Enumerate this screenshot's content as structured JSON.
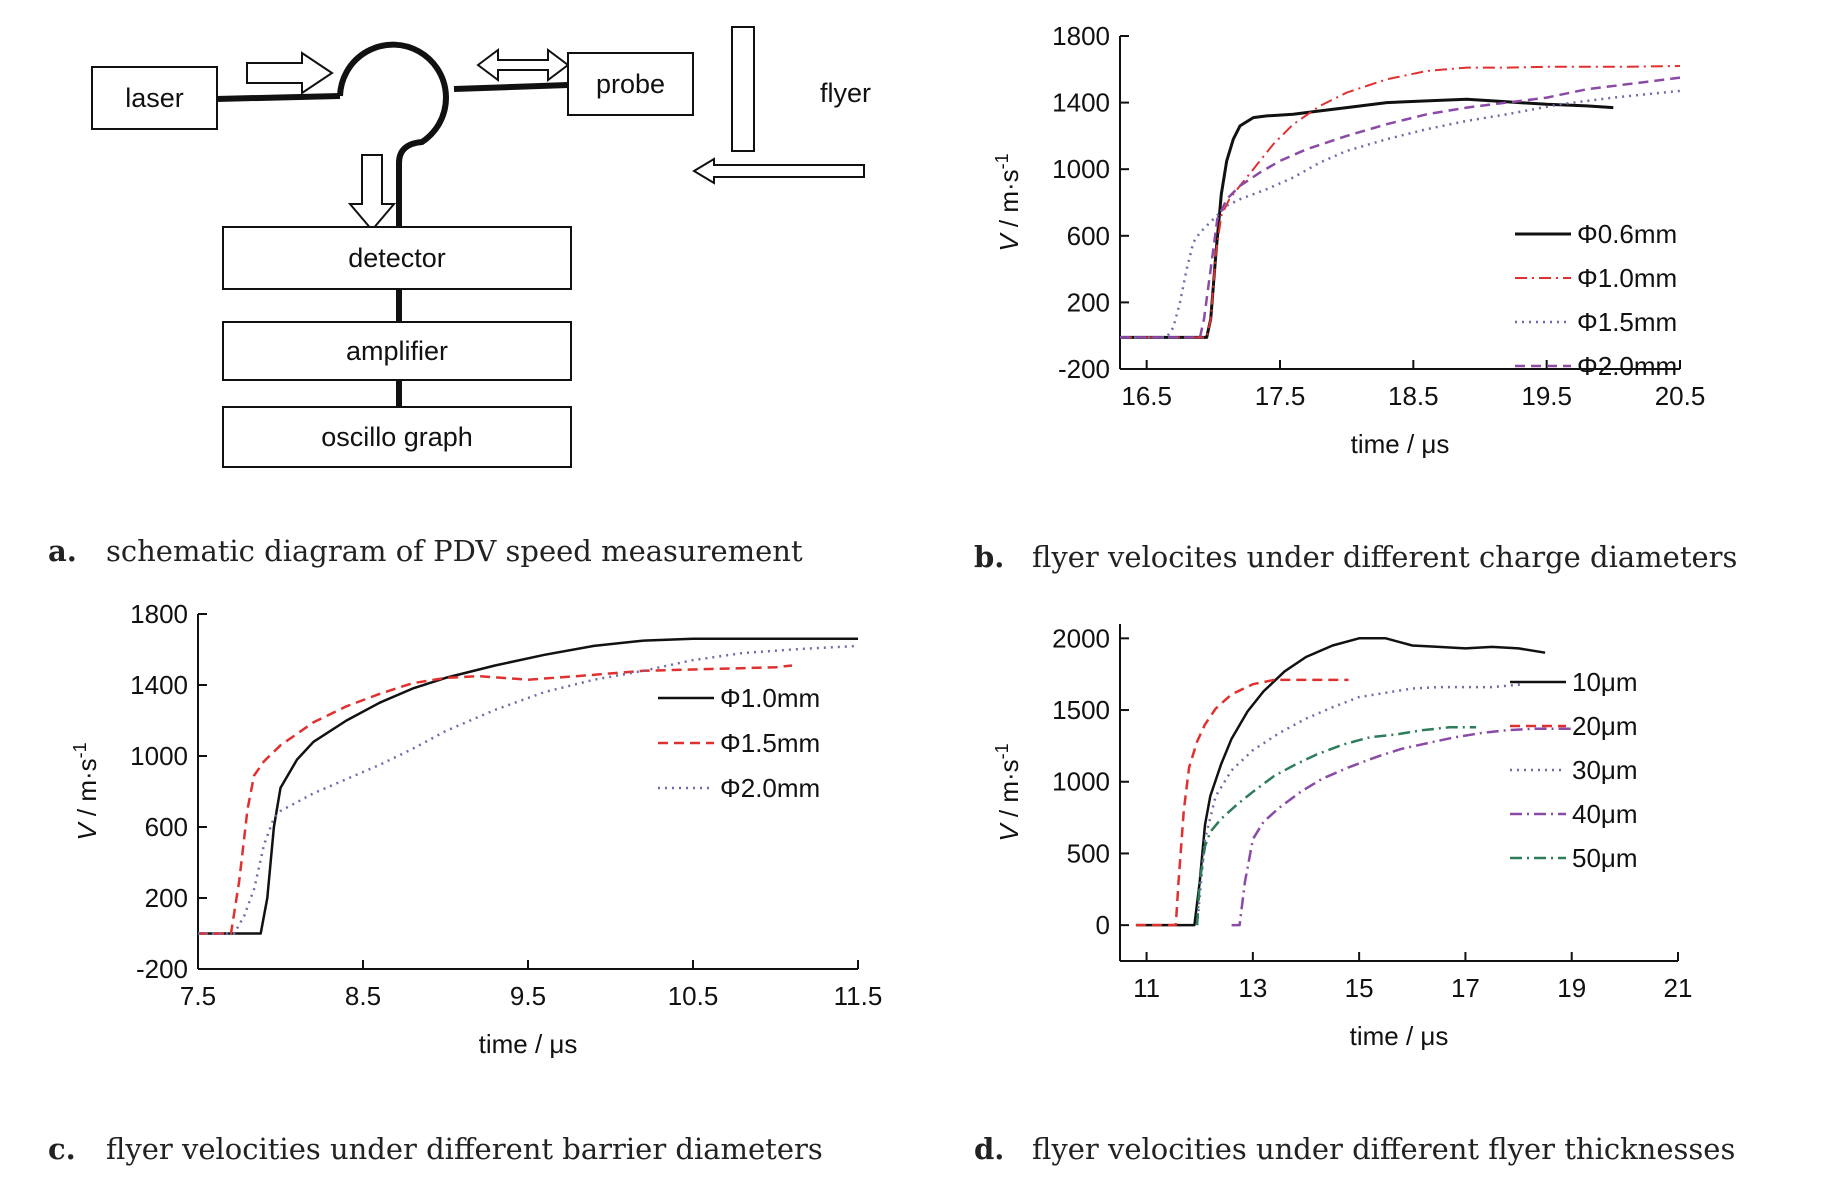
{
  "captions": {
    "a": {
      "letter": "a.",
      "text": "schematic diagram of PDV speed measurement"
    },
    "b": {
      "letter": "b.",
      "text": "flyer velocites under different charge diameters"
    },
    "c": {
      "letter": "c.",
      "text": "flyer velocities under different barrier diameters"
    },
    "d": {
      "letter": "d.",
      "text": "flyer velocities under different flyer thicknesses"
    }
  },
  "diagram": {
    "laser": "laser",
    "probe": "probe",
    "flyer": "flyer",
    "detector": "detector",
    "amplifier": "amplifier",
    "oscillograph": "oscillo graph"
  },
  "chart_data": [
    {
      "id": "b",
      "type": "line",
      "xlabel": "time / μs",
      "ylabel": "V / m·s-1",
      "xlim": [
        16.3,
        20.5
      ],
      "ylim": [
        -200,
        1800
      ],
      "xticks": [
        16.5,
        17.5,
        18.5,
        19.5,
        20.5
      ],
      "yticks": [
        -200,
        200,
        600,
        1000,
        1400,
        1800
      ],
      "legend": "right-middle",
      "series": [
        {
          "name": "Φ0.6mm",
          "color": "#111111",
          "style": "solid",
          "width": 3,
          "x": [
            16.3,
            16.95,
            16.98,
            17.02,
            17.06,
            17.1,
            17.15,
            17.2,
            17.3,
            17.4,
            17.6,
            17.8,
            18.0,
            18.3,
            18.6,
            18.9,
            19.2,
            19.5,
            19.8,
            20.0
          ],
          "y": [
            -10,
            -10,
            100,
            500,
            850,
            1050,
            1180,
            1260,
            1310,
            1320,
            1330,
            1350,
            1370,
            1400,
            1410,
            1420,
            1405,
            1390,
            1380,
            1370
          ]
        },
        {
          "name": "Φ1.0mm",
          "color": "#e03030",
          "style": "dashdot",
          "width": 2,
          "x": [
            16.3,
            16.95,
            16.98,
            17.02,
            17.06,
            17.12,
            17.2,
            17.3,
            17.45,
            17.6,
            17.8,
            18.0,
            18.3,
            18.6,
            18.9,
            19.2,
            19.5,
            19.8,
            20.1,
            20.5
          ],
          "y": [
            -10,
            -10,
            100,
            500,
            720,
            820,
            900,
            1000,
            1150,
            1270,
            1380,
            1460,
            1540,
            1590,
            1610,
            1610,
            1615,
            1615,
            1615,
            1620
          ]
        },
        {
          "name": "Φ1.5mm",
          "color": "#6d6dab",
          "style": "dotted",
          "width": 2.5,
          "x": [
            16.3,
            16.65,
            16.7,
            16.75,
            16.8,
            16.85,
            16.9,
            17.0,
            17.1,
            17.2,
            17.4,
            17.6,
            17.8,
            18.0,
            18.3,
            18.6,
            18.9,
            19.2,
            19.6,
            20.0,
            20.5
          ],
          "y": [
            -10,
            -10,
            50,
            200,
            400,
            560,
            620,
            700,
            780,
            820,
            880,
            950,
            1040,
            1110,
            1180,
            1240,
            1290,
            1330,
            1390,
            1430,
            1470
          ]
        },
        {
          "name": "Φ2.0mm",
          "color": "#8a4aa6",
          "style": "dashed",
          "width": 2.5,
          "x": [
            16.3,
            16.9,
            16.93,
            16.98,
            17.03,
            17.1,
            17.2,
            17.35,
            17.5,
            17.7,
            18.0,
            18.3,
            18.6,
            18.9,
            19.2,
            19.5,
            19.8,
            20.1,
            20.5
          ],
          "y": [
            -10,
            -10,
            100,
            400,
            700,
            820,
            900,
            980,
            1050,
            1120,
            1200,
            1270,
            1330,
            1370,
            1400,
            1430,
            1480,
            1510,
            1550
          ]
        }
      ]
    },
    {
      "id": "c",
      "type": "line",
      "xlabel": "time / μs",
      "ylabel": "V / m·s-1",
      "xlim": [
        7.5,
        11.5
      ],
      "ylim": [
        -200,
        1800
      ],
      "xticks": [
        7.5,
        8.5,
        9.5,
        10.5,
        11.5
      ],
      "yticks": [
        -200,
        200,
        600,
        1000,
        1400,
        1800
      ],
      "legend": "right-middle",
      "series": [
        {
          "name": "Φ1.0mm",
          "color": "#111111",
          "style": "solid",
          "width": 2.5,
          "x": [
            7.5,
            7.88,
            7.92,
            7.96,
            8.0,
            8.1,
            8.2,
            8.4,
            8.6,
            8.8,
            9.0,
            9.3,
            9.6,
            9.9,
            10.2,
            10.5,
            10.8,
            11.1,
            11.5
          ],
          "y": [
            0,
            0,
            200,
            600,
            820,
            980,
            1080,
            1200,
            1300,
            1380,
            1440,
            1510,
            1570,
            1620,
            1650,
            1660,
            1660,
            1660,
            1660
          ]
        },
        {
          "name": "Φ1.5mm",
          "color": "#e03030",
          "style": "dashed",
          "width": 2.5,
          "x": [
            7.5,
            7.7,
            7.75,
            7.8,
            7.84,
            7.9,
            8.0,
            8.2,
            8.4,
            8.6,
            8.8,
            9.0,
            9.2,
            9.5,
            9.8,
            10.2,
            10.6,
            11.0,
            11.1
          ],
          "y": [
            0,
            0,
            300,
            700,
            890,
            970,
            1060,
            1190,
            1280,
            1350,
            1410,
            1440,
            1450,
            1430,
            1450,
            1480,
            1490,
            1500,
            1510
          ]
        },
        {
          "name": "Φ2.0mm",
          "color": "#6d6dab",
          "style": "dotted",
          "width": 2.5,
          "x": [
            7.5,
            7.72,
            7.78,
            7.84,
            7.9,
            7.96,
            8.0,
            8.2,
            8.4,
            8.6,
            8.8,
            9.0,
            9.3,
            9.6,
            9.9,
            10.2,
            10.5,
            10.8,
            11.1,
            11.5
          ],
          "y": [
            0,
            0,
            100,
            250,
            500,
            650,
            690,
            790,
            870,
            950,
            1040,
            1140,
            1260,
            1360,
            1430,
            1480,
            1540,
            1580,
            1600,
            1620
          ]
        }
      ]
    },
    {
      "id": "d",
      "type": "line",
      "xlabel": "time / μs",
      "ylabel": "V / m·s-1",
      "xlim": [
        10.5,
        21
      ],
      "ylim": [
        -250,
        2100
      ],
      "xticks": [
        11,
        13,
        15,
        17,
        19,
        21
      ],
      "yticks": [
        0,
        500,
        1000,
        1500,
        2000
      ],
      "legend": "right-middle",
      "series": [
        {
          "name": "10μm",
          "color": "#111111",
          "style": "solid",
          "width": 2.5,
          "x": [
            10.8,
            11.9,
            12.0,
            12.1,
            12.2,
            12.4,
            12.6,
            12.9,
            13.2,
            13.6,
            14.0,
            14.5,
            15.0,
            15.5,
            16.0,
            16.5,
            17.0,
            17.5,
            18.0,
            18.5
          ],
          "y": [
            0,
            0,
            300,
            700,
            900,
            1120,
            1300,
            1490,
            1630,
            1770,
            1870,
            1950,
            2000,
            2000,
            1950,
            1940,
            1930,
            1940,
            1930,
            1900
          ]
        },
        {
          "name": "20μm",
          "color": "#e03030",
          "style": "dashed",
          "width": 2.5,
          "x": [
            10.8,
            11.55,
            11.6,
            11.7,
            11.8,
            11.95,
            12.1,
            12.3,
            12.6,
            13.0,
            13.4,
            13.8,
            14.2,
            14.8
          ],
          "y": [
            0,
            0,
            300,
            800,
            1100,
            1280,
            1400,
            1510,
            1610,
            1680,
            1710,
            1710,
            1710,
            1710
          ]
        },
        {
          "name": "30μm",
          "color": "#6d6dab",
          "style": "dotted",
          "width": 2.5,
          "x": [
            11.95,
            12.0,
            12.1,
            12.3,
            12.6,
            13.0,
            13.5,
            14.0,
            14.5,
            15.0,
            15.5,
            16.0,
            16.5,
            17.0,
            17.5,
            18.1
          ],
          "y": [
            0,
            200,
            600,
            900,
            1080,
            1220,
            1340,
            1440,
            1520,
            1590,
            1620,
            1650,
            1660,
            1660,
            1660,
            1680
          ]
        },
        {
          "name": "40μm",
          "color": "#8a4aa6",
          "style": "dashdot",
          "width": 2.5,
          "x": [
            12.6,
            12.75,
            12.85,
            13.0,
            13.2,
            13.5,
            13.9,
            14.3,
            14.8,
            15.3,
            15.8,
            16.3,
            16.8,
            17.3,
            17.8,
            18.3,
            18.8,
            19.0
          ],
          "y": [
            0,
            0,
            300,
            600,
            720,
            820,
            930,
            1020,
            1100,
            1170,
            1230,
            1270,
            1310,
            1340,
            1360,
            1370,
            1370,
            1370
          ]
        },
        {
          "name": "50μm",
          "color": "#2e7d5a",
          "style": "dashdot",
          "width": 2.5,
          "x": [
            11.95,
            12.0,
            12.1,
            12.2,
            12.4,
            12.7,
            13.0,
            13.4,
            13.8,
            14.2,
            14.7,
            15.2,
            15.7,
            16.2,
            16.7,
            17.2
          ],
          "y": [
            0,
            300,
            550,
            650,
            740,
            840,
            930,
            1040,
            1120,
            1190,
            1260,
            1310,
            1330,
            1360,
            1380,
            1380
          ]
        }
      ]
    }
  ]
}
